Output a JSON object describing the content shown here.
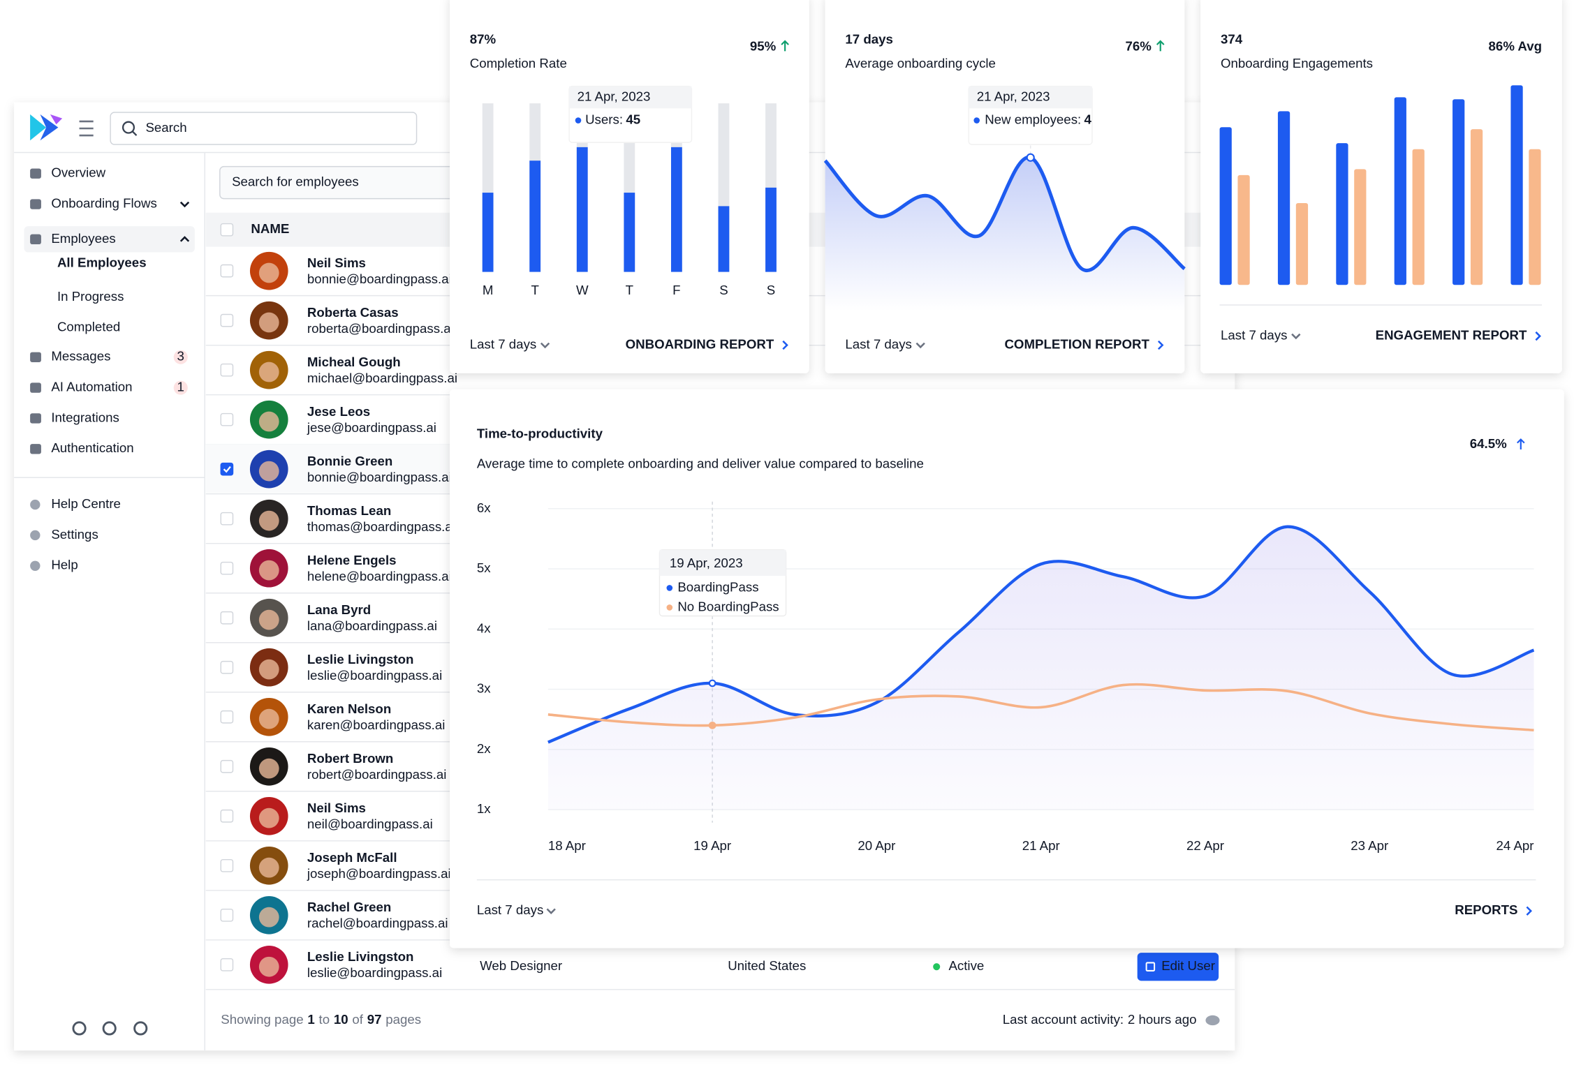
{
  "sidebar": {
    "search": "Search",
    "nav": [
      {
        "label": "Overview"
      },
      {
        "label": "Onboarding Flows"
      },
      {
        "label": "Employees",
        "children": [
          "All Employees",
          "In Progress",
          "Completed"
        ]
      },
      {
        "label": "Messages",
        "badge": 3
      },
      {
        "label": "AI Automation",
        "badge": 1
      },
      {
        "label": "Integrations"
      },
      {
        "label": "Authentication"
      }
    ],
    "footer_nav": [
      "Help Centre",
      "Settings",
      "Help"
    ]
  },
  "employees": {
    "search": "Search for employees",
    "column": "NAME",
    "rows": [
      {
        "name": "Neil Sims",
        "email": "bonnie@boardingpass.ai"
      },
      {
        "name": "Roberta Casas",
        "email": "roberta@boardingpass.ai"
      },
      {
        "name": "Micheal Gough",
        "email": "michael@boardingpass.ai"
      },
      {
        "name": "Jese Leos",
        "email": "jese@boardingpass.ai"
      },
      {
        "name": "Bonnie Green",
        "email": "bonnie@boardingpass.ai",
        "checked": true
      },
      {
        "name": "Thomas Lean",
        "email": "thomas@boardingpass.ai"
      },
      {
        "name": "Helene Engels",
        "email": "helene@boardingpass.ai"
      },
      {
        "name": "Lana Byrd",
        "email": "lana@boardingpass.ai"
      },
      {
        "name": "Leslie Livingston",
        "email": "leslie@boardingpass.ai"
      },
      {
        "name": "Karen Nelson",
        "email": "karen@boardingpass.ai"
      },
      {
        "name": "Robert Brown",
        "email": "robert@boardingpass.ai"
      },
      {
        "name": "Neil Sims",
        "email": "neil@boardingpass.ai"
      },
      {
        "name": "Joseph McFall",
        "email": "joseph@boardingpass.ai"
      },
      {
        "name": "Rachel Green",
        "email": "rachel@boardingpass.ai"
      },
      {
        "name": "Leslie Livingston",
        "email": "leslie@boardingpass.ai",
        "role": "Web Designer",
        "country": "United States",
        "status": "Active",
        "action": "Edit User"
      }
    ],
    "pagination": {
      "prefix": "Showing page",
      "from": 1,
      "to_label": "to",
      "to": 10,
      "of_label": "of",
      "total": 97,
      "suffix": "pages"
    },
    "activity": {
      "label": "Last account activity:",
      "value": "2 hours ago"
    }
  },
  "cards": [
    {
      "value": "87%",
      "label": "Completion Rate",
      "change": "95%",
      "footer": "Last 7 days",
      "link": "ONBOARDING REPORT",
      "tooltip": {
        "date": "21 Apr, 2023",
        "label": "Users:",
        "value": 45
      }
    },
    {
      "value": "17 days",
      "label": "Average onboarding cycle",
      "change": "76%",
      "footer": "Last 7 days",
      "link": "COMPLETION REPORT",
      "tooltip": {
        "date": "21 Apr, 2023",
        "label": "New employees:",
        "value": 4
      }
    },
    {
      "value": "374",
      "label": "Onboarding Engagements",
      "change": "86% Avg",
      "footer": "Last 7 days",
      "link": "ENGAGEMENT REPORT"
    }
  ],
  "main": {
    "title": "Time-to-productivity",
    "subtitle": "Average time to complete onboarding and deliver value compared to baseline",
    "change": "64.5%",
    "footer": "Last 7 days",
    "link": "REPORTS",
    "tooltip": {
      "date": "19 Apr, 2023"
    }
  },
  "chart_data": [
    {
      "type": "bar",
      "categories": [
        "M",
        "T",
        "W",
        "T",
        "F",
        "S",
        "S"
      ],
      "values": [
        47,
        66,
        74,
        47,
        74,
        39,
        50
      ],
      "color": "#1d5bf0",
      "track_color": "#e5e7eb",
      "ylim": [
        0,
        100
      ]
    },
    {
      "type": "area",
      "values": [
        3.92,
        2.48,
        3.0,
        1.96,
        4,
        1.1,
        2.17,
        1.1
      ],
      "color": "#1d5bf0",
      "ylim": [
        0,
        4
      ]
    },
    {
      "type": "grouped-bar",
      "series": [
        {
          "color": "#1d5bf0",
          "values": [
            79,
            87,
            71,
            94,
            93,
            100
          ]
        },
        {
          "color": "#f8b88b",
          "values": [
            55,
            41,
            58,
            68,
            78,
            68
          ]
        }
      ],
      "ylim": [
        0,
        100
      ]
    },
    {
      "type": "line",
      "x": [
        18,
        18.5,
        19,
        19.5,
        20,
        20.5,
        21,
        21.5,
        22,
        22.5,
        23,
        23.5,
        24
      ],
      "xlim": [
        18,
        24
      ],
      "xticks": [
        {
          "value": 18,
          "label": "18 Apr"
        },
        {
          "value": 19,
          "label": "19 Apr"
        },
        {
          "value": 20,
          "label": "20 Apr"
        },
        {
          "value": 21,
          "label": "21 Apr"
        },
        {
          "value": 22,
          "label": "22 Apr"
        },
        {
          "value": 23,
          "label": "23 Apr"
        },
        {
          "value": 24,
          "label": "24 Apr"
        }
      ],
      "ylim": [
        1,
        6
      ],
      "yticks": [
        {
          "value": 1,
          "label": "1x"
        },
        {
          "value": 2,
          "label": "2x"
        },
        {
          "value": 3,
          "label": "3x"
        },
        {
          "value": 4,
          "label": "4x"
        },
        {
          "value": 5,
          "label": "5x"
        },
        {
          "value": 6,
          "label": "6x"
        }
      ],
      "grid": true,
      "series": [
        {
          "name": "BoardingPass",
          "color": "#1d5bf0",
          "values": [
            2.12,
            2.68,
            3.1,
            2.58,
            2.78,
            3.95,
            5.08,
            4.87,
            4.55,
            5.7,
            4.62,
            3.25,
            3.65
          ]
        },
        {
          "name": "No BoardingPass",
          "color": "#f6b185",
          "values": [
            2.58,
            2.45,
            2.4,
            2.53,
            2.83,
            2.88,
            2.7,
            3.07,
            2.98,
            2.97,
            2.6,
            2.42,
            2.32
          ]
        }
      ]
    }
  ]
}
